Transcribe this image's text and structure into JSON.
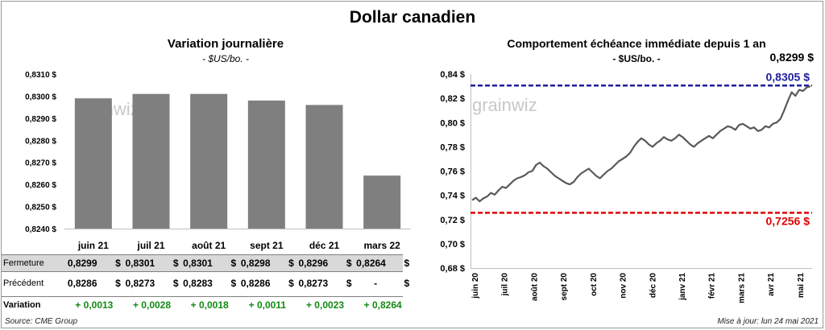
{
  "title": "Dollar canadien",
  "left_chart": {
    "title": "Variation  journalière",
    "unit": "- $US/bo. -"
  },
  "right_chart": {
    "title": "Comportement échéance immédiate depuis 1 an",
    "unit": "- $US/bo. -"
  },
  "watermark": "grainwiz",
  "table": {
    "rows": [
      {
        "label": "Fermeture",
        "values": [
          "0,8299",
          "0,8301",
          "0,8301",
          "0,8298",
          "0,8296",
          "0,8264"
        ],
        "currency": "$"
      },
      {
        "label": "Précédent",
        "values": [
          "0,8286",
          "0,8273",
          "0,8283",
          "0,8286",
          "0,8273",
          "-"
        ],
        "currency": "$"
      },
      {
        "label": "Variation",
        "values": [
          "+ 0,0013",
          "+ 0,0028",
          "+ 0,0018",
          "+ 0,0011",
          "+ 0,0023",
          "+ 0,8264"
        ]
      }
    ]
  },
  "footer": {
    "source": "Source: CME Group",
    "updated": "Mise à jour: lun 24 mai 2021"
  },
  "colors": {
    "bar": "#7f7f7f",
    "line": "#595959",
    "high_line": "#1f1f9c",
    "low_line": "#e00000",
    "variation_text": "#138a13",
    "table_shade": "#d9d9d9"
  },
  "chart_data": [
    {
      "type": "bar",
      "categories": [
        "juin 21",
        "juil 21",
        "août 21",
        "sept 21",
        "déc 21",
        "mars 22"
      ],
      "values": [
        0.8299,
        0.8301,
        0.8301,
        0.8298,
        0.8296,
        0.8264
      ],
      "ylim": [
        0.824,
        0.831
      ],
      "yticks": [
        "0,8240 $",
        "0,8250 $",
        "0,8260 $",
        "0,8270 $",
        "0,8280 $",
        "0,8290 $",
        "0,8300 $",
        "0,8310 $"
      ],
      "grid": false,
      "legend": "none"
    },
    {
      "type": "line",
      "ylim": [
        0.68,
        0.84
      ],
      "yticks": [
        "0,68 $",
        "0,70 $",
        "0,72 $",
        "0,74 $",
        "0,76 $",
        "0,78 $",
        "0,80 $",
        "0,82 $",
        "0,84 $"
      ],
      "xticks": [
        "juin 20",
        "juil 20",
        "août 20",
        "sept 20",
        "oct 20",
        "nov 20",
        "déc 20",
        "janv 21",
        "févr 21",
        "mars 21",
        "avr 21",
        "mai 21"
      ],
      "grid": false,
      "series": [
        {
          "values": [
            0.736,
            0.738,
            0.735,
            0.7375,
            0.739,
            0.742,
            0.7405,
            0.744,
            0.747,
            0.746,
            0.749,
            0.752,
            0.754,
            0.755,
            0.7565,
            0.759,
            0.76,
            0.765,
            0.767,
            0.764,
            0.762,
            0.759,
            0.756,
            0.754,
            0.752,
            0.75,
            0.749,
            0.751,
            0.755,
            0.758,
            0.76,
            0.762,
            0.759,
            0.756,
            0.754,
            0.757,
            0.76,
            0.762,
            0.765,
            0.768,
            0.77,
            0.772,
            0.775,
            0.78,
            0.784,
            0.787,
            0.785,
            0.782,
            0.78,
            0.783,
            0.785,
            0.788,
            0.786,
            0.785,
            0.787,
            0.79,
            0.788,
            0.785,
            0.782,
            0.78,
            0.783,
            0.785,
            0.787,
            0.789,
            0.787,
            0.79,
            0.793,
            0.795,
            0.797,
            0.796,
            0.794,
            0.798,
            0.799,
            0.797,
            0.795,
            0.796,
            0.793,
            0.794,
            0.797,
            0.796,
            0.799,
            0.8,
            0.803,
            0.81,
            0.818,
            0.825,
            0.822,
            0.827,
            0.826,
            0.829,
            0.8299
          ]
        }
      ],
      "reference_lines": [
        {
          "value": 0.8305,
          "label": "0,8305 $"
        },
        {
          "value": 0.7256,
          "label": "0,7256 $"
        }
      ],
      "last_value_label": "0,8299 $"
    }
  ]
}
